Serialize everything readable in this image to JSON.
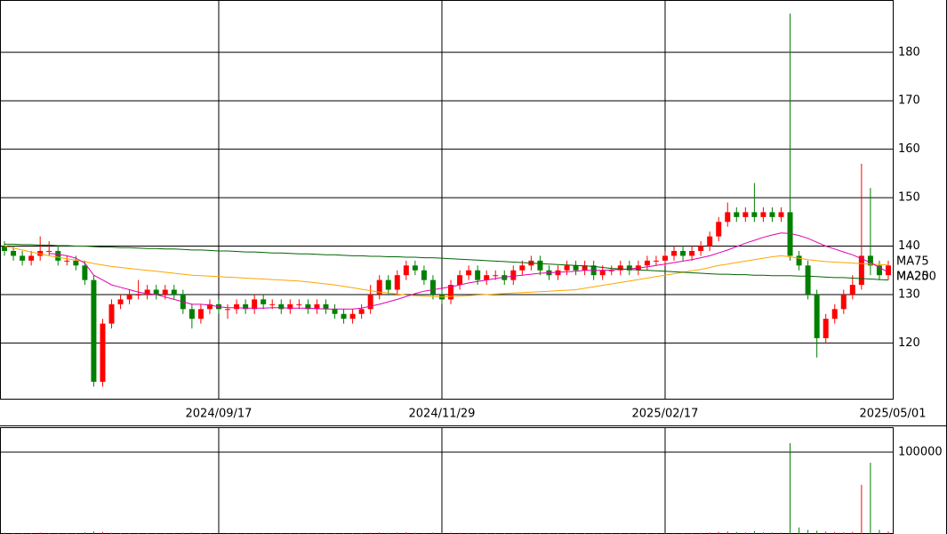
{
  "chart_data": {
    "type": "candlestick",
    "categories": [
      null,
      null,
      null,
      null,
      null,
      null,
      null,
      null,
      null,
      null,
      null,
      null,
      null,
      null,
      null,
      null,
      null,
      null,
      null,
      null,
      null,
      null,
      null,
      null,
      "2024/09/17",
      null,
      null,
      null,
      null,
      null,
      null,
      null,
      null,
      null,
      null,
      null,
      null,
      null,
      null,
      null,
      null,
      null,
      null,
      null,
      null,
      null,
      null,
      null,
      null,
      "2024/11/29",
      null,
      null,
      null,
      null,
      null,
      null,
      null,
      null,
      null,
      null,
      null,
      null,
      null,
      null,
      null,
      null,
      null,
      null,
      null,
      null,
      null,
      null,
      null,
      null,
      "2025/02/17",
      null,
      null,
      null,
      null,
      null,
      null,
      null,
      null,
      null,
      null,
      null,
      null,
      null,
      null,
      null,
      null,
      null,
      null,
      null,
      null,
      null,
      null,
      null,
      null,
      "2025/05/01"
    ],
    "open": [
      140,
      139,
      138,
      137,
      138,
      139,
      139,
      137,
      137,
      136,
      133,
      112,
      124,
      128,
      129,
      130,
      130,
      131,
      130,
      131,
      130,
      127,
      125,
      127,
      128,
      127,
      127,
      128,
      127,
      129,
      128,
      128,
      127,
      128,
      128,
      127,
      128,
      127,
      126,
      125,
      126,
      127,
      130,
      133,
      131,
      134,
      136,
      135,
      133,
      130,
      129,
      132,
      134,
      135,
      133,
      134,
      134,
      133,
      135,
      136,
      137,
      135,
      134,
      135,
      136,
      135,
      136,
      134,
      135,
      135,
      136,
      135,
      136,
      137,
      137,
      138,
      139,
      138,
      139,
      140,
      142,
      145,
      147,
      146,
      147,
      146,
      147,
      146,
      147,
      138,
      136,
      130,
      121,
      125,
      127,
      130,
      132,
      138,
      136,
      134
    ],
    "high": [
      141,
      140,
      139,
      139,
      142,
      141,
      140,
      138,
      138,
      137,
      134,
      125,
      129,
      130,
      131,
      133,
      132,
      132,
      132,
      132,
      131,
      128,
      128,
      129,
      129,
      128,
      129,
      129,
      130,
      130,
      129,
      129,
      129,
      129,
      129,
      129,
      129,
      128,
      127,
      127,
      128,
      132,
      134,
      134,
      135,
      137,
      137,
      136,
      134,
      131,
      133,
      135,
      136,
      136,
      135,
      135,
      135,
      136,
      137,
      138,
      138,
      136,
      136,
      137,
      137,
      137,
      137,
      136,
      136,
      137,
      137,
      137,
      138,
      138,
      139,
      140,
      140,
      140,
      141,
      143,
      146,
      149,
      148,
      148,
      153,
      148,
      148,
      148,
      188,
      139,
      137,
      131,
      126,
      128,
      131,
      134,
      157,
      152,
      137,
      137
    ],
    "low": [
      138,
      137,
      136,
      136,
      137,
      138,
      136,
      136,
      135,
      132,
      111,
      111,
      123,
      127,
      128,
      129,
      129,
      129,
      129,
      129,
      126,
      123,
      124,
      126,
      126,
      125,
      126,
      126,
      126,
      127,
      127,
      126,
      126,
      127,
      126,
      126,
      126,
      125,
      124,
      124,
      125,
      126,
      129,
      130,
      130,
      133,
      134,
      132,
      129,
      128,
      128,
      131,
      133,
      132,
      132,
      133,
      132,
      132,
      134,
      135,
      134,
      133,
      133,
      134,
      134,
      134,
      133,
      133,
      134,
      134,
      134,
      134,
      135,
      136,
      136,
      137,
      137,
      137,
      138,
      139,
      141,
      144,
      145,
      145,
      145,
      145,
      145,
      145,
      137,
      135,
      129,
      117,
      120,
      124,
      126,
      129,
      131,
      134,
      133,
      133
    ],
    "close": [
      139,
      138,
      137,
      138,
      139,
      139,
      137,
      137,
      136,
      133,
      112,
      124,
      128,
      129,
      130,
      130,
      131,
      130,
      131,
      130,
      127,
      125,
      127,
      128,
      127,
      127,
      128,
      127,
      129,
      128,
      128,
      127,
      128,
      128,
      127,
      128,
      127,
      126,
      125,
      126,
      127,
      130,
      133,
      131,
      134,
      136,
      135,
      133,
      130,
      129,
      132,
      134,
      135,
      133,
      134,
      134,
      133,
      135,
      136,
      137,
      135,
      134,
      135,
      136,
      135,
      136,
      134,
      135,
      135,
      136,
      135,
      136,
      137,
      137,
      138,
      139,
      138,
      139,
      140,
      142,
      145,
      147,
      146,
      147,
      146,
      147,
      146,
      147,
      138,
      136,
      130,
      121,
      125,
      127,
      130,
      132,
      138,
      136,
      134,
      136
    ],
    "volume": [
      1500,
      1200,
      1000,
      1100,
      1800,
      1000,
      1300,
      900,
      1200,
      2000,
      3000,
      2500,
      1500,
      1200,
      1000,
      900,
      1100,
      900,
      1000,
      800,
      1500,
      1800,
      1200,
      1000,
      800,
      700,
      800,
      700,
      900,
      800,
      700,
      800,
      700,
      700,
      800,
      700,
      800,
      900,
      1000,
      900,
      1000,
      1600,
      2000,
      1500,
      1800,
      2000,
      1500,
      1400,
      1800,
      1500,
      1600,
      1500,
      1400,
      1200,
      1100,
      1000,
      1100,
      1200,
      1300,
      1400,
      1200,
      1100,
      1000,
      1100,
      1000,
      1100,
      1200,
      1000,
      900,
      1000,
      900,
      1000,
      1200,
      1100,
      1300,
      1400,
      1200,
      1300,
      1500,
      1800,
      2500,
      3000,
      2500,
      2000,
      3500,
      2000,
      1800,
      1700,
      111000,
      8000,
      5000,
      4000,
      3000,
      2500,
      2000,
      2500,
      60000,
      87000,
      5000,
      3000
    ],
    "up_color": "#ff0000",
    "down_color": "#008000",
    "ylim": [
      108.5,
      190.8
    ],
    "yticks": [
      120,
      130,
      140,
      150,
      160,
      170,
      180
    ],
    "volume_ylim": [
      0,
      130435
    ],
    "volume_yticks": [
      100000
    ],
    "grid": true,
    "series": [
      {
        "name": "MA75",
        "color": "#ffa500",
        "values": [
          140,
          139.6,
          139.2,
          138.8,
          138.4,
          138,
          137.7,
          137.4,
          137.1,
          136.8,
          136.4,
          136.1,
          135.8,
          135.6,
          135.4,
          135.2,
          135,
          134.8,
          134.6,
          134.4,
          134.2,
          134,
          133.9,
          133.8,
          133.7,
          133.6,
          133.5,
          133.4,
          133.3,
          133.2,
          133.1,
          133,
          132.9,
          132.8,
          132.6,
          132.4,
          132.2,
          132,
          131.7,
          131.4,
          131.1,
          130.8,
          130.5,
          130.3,
          130.1,
          129.9,
          129.8,
          129.7,
          129.6,
          129.5,
          129.6,
          129.7,
          129.8,
          129.9,
          130,
          130.1,
          130.2,
          130.3,
          130.4,
          130.5,
          130.6,
          130.7,
          130.8,
          130.9,
          131,
          131.3,
          131.6,
          131.9,
          132.2,
          132.5,
          132.8,
          133.1,
          133.4,
          133.7,
          134,
          134.3,
          134.6,
          134.9,
          135.2,
          135.6,
          136,
          136.3,
          136.6,
          136.9,
          137.2,
          137.5,
          137.8,
          138,
          137.8,
          137.5,
          137.2,
          137,
          136.8,
          136.7,
          136.6,
          136.5,
          136.4,
          136.3,
          136.2,
          136.1
        ]
      },
      {
        "name": "MA25",
        "color": "#e000b0",
        "values": [
          null,
          null,
          null,
          null,
          null,
          138.5,
          138.3,
          138,
          137.5,
          136.5,
          134,
          133,
          132,
          131.5,
          131,
          130.5,
          130.2,
          130,
          129.5,
          129,
          128.5,
          128,
          128,
          127.8,
          127.5,
          127.3,
          127.3,
          127.2,
          127.2,
          127.2,
          127.3,
          127.3,
          127.2,
          127.2,
          127.2,
          127.1,
          127,
          127,
          127,
          127,
          127.2,
          127.6,
          128,
          128.5,
          129,
          129.6,
          130.2,
          130.7,
          131,
          131.3,
          131.6,
          132,
          132.4,
          132.7,
          133,
          133.3,
          133.6,
          133.8,
          134,
          134.2,
          134.4,
          134.5,
          134.6,
          134.7,
          134.8,
          135,
          135,
          135,
          135.1,
          135.2,
          135.3,
          135.5,
          135.7,
          136,
          136.3,
          136.6,
          136.9,
          137.2,
          137.6,
          138,
          138.6,
          139.2,
          139.9,
          140.6,
          141.2,
          141.8,
          142.3,
          142.7,
          142.6,
          142.2,
          141.6,
          140.8,
          140,
          139.4,
          138.8,
          138.2,
          137.4,
          136.6,
          135.6,
          134.6
        ]
      },
      {
        "name": "MA200",
        "color": "#006400",
        "values": [
          140.4,
          140.4,
          140.3,
          140.3,
          140.2,
          140.2,
          140.1,
          140.1,
          140,
          140,
          139.9,
          139.8,
          139.8,
          139.7,
          139.7,
          139.6,
          139.5,
          139.5,
          139.4,
          139.4,
          139.3,
          139.2,
          139.2,
          139.1,
          139,
          139,
          138.9,
          138.8,
          138.8,
          138.7,
          138.6,
          138.6,
          138.5,
          138.4,
          138.4,
          138.3,
          138.2,
          138.2,
          138.1,
          138,
          138,
          137.9,
          137.9,
          137.8,
          137.8,
          137.7,
          137.7,
          137.6,
          137.6,
          137.5,
          137.4,
          137.3,
          137.2,
          137.1,
          137,
          136.9,
          136.8,
          136.7,
          136.6,
          136.5,
          136.4,
          136.3,
          136.2,
          136.1,
          136,
          135.9,
          135.8,
          135.6,
          135.4,
          135.3,
          135.2,
          135.1,
          135,
          134.9,
          134.8,
          134.7,
          134.6,
          134.5,
          134.4,
          134.3,
          134.2,
          134.2,
          134.1,
          134.1,
          134,
          134,
          133.9,
          133.9,
          133.9,
          133.8,
          133.8,
          133.7,
          133.6,
          133.5,
          133.5,
          133.4,
          133.3,
          133.2,
          133.1,
          133
        ]
      }
    ]
  }
}
